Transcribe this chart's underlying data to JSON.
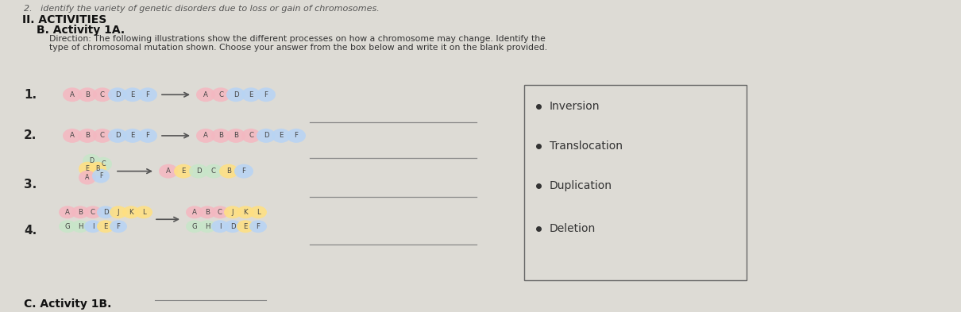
{
  "bg_color": "#dddbd5",
  "title_line1": "2.   identify the variety of genetic disorders due to loss or gain of chromosomes.",
  "section": "II. ACTIVITIES",
  "subsection": "B. Activity 1A.",
  "direction1": "Direction: The following illustrations show the different processes on how a chromosome may change. Identify the",
  "direction2": "type of chromosomal mutation shown. Choose your answer from the box below and write it on the blank provided.",
  "row_labels": [
    "1.",
    "2.",
    "3.",
    "4."
  ],
  "answer_box_items": [
    "Inversion",
    "Translocation",
    "Duplication",
    "Deletion"
  ],
  "rows": [
    {
      "left_labels": [
        "A",
        "B",
        "C",
        "D",
        "E",
        "F"
      ],
      "left_colors": [
        "#f4b8c1",
        "#f4b8c1",
        "#f4b8c1",
        "#b8d4f4",
        "#b8d4f4",
        "#b8d4f4"
      ],
      "right_labels": [
        "A",
        "C",
        "D",
        "E",
        "F"
      ],
      "right_colors": [
        "#f4b8c1",
        "#f4b8c1",
        "#b8d4f4",
        "#b8d4f4",
        "#b8d4f4"
      ],
      "type": "linear"
    },
    {
      "left_labels": [
        "A",
        "B",
        "C",
        "D",
        "E",
        "F"
      ],
      "left_colors": [
        "#f4b8c1",
        "#f4b8c1",
        "#f4b8c1",
        "#b8d4f4",
        "#b8d4f4",
        "#b8d4f4"
      ],
      "right_labels": [
        "A",
        "B",
        "B",
        "C",
        "D",
        "E",
        "F"
      ],
      "right_colors": [
        "#f4b8c1",
        "#f4b8c1",
        "#f4b8c1",
        "#f4b8c1",
        "#b8d4f4",
        "#b8d4f4",
        "#b8d4f4"
      ],
      "type": "linear"
    },
    {
      "circ_positions": [
        [
          10,
          -18,
          "D",
          "#c8e6c9"
        ],
        [
          25,
          -14,
          "C",
          "#c8e6c9"
        ],
        [
          5,
          -8,
          "E",
          "#ffe082"
        ],
        [
          18,
          -8,
          "B",
          "#ffe082"
        ],
        [
          5,
          3,
          "A",
          "#f4b8c1"
        ],
        [
          22,
          1,
          "F",
          "#b8d4f4"
        ]
      ],
      "right_labels": [
        "A",
        "E",
        "D",
        "C",
        "B",
        "F"
      ],
      "right_colors": [
        "#f4b8c1",
        "#ffe082",
        "#c8e6c9",
        "#c8e6c9",
        "#ffe082",
        "#b8d4f4"
      ],
      "type": "circular_to_linear"
    },
    {
      "top_left_labels": [
        "A",
        "B",
        "C",
        "D",
        "J",
        "K",
        "L"
      ],
      "top_left_colors": [
        "#f4b8c1",
        "#f4b8c1",
        "#f4b8c1",
        "#b8d4f4",
        "#ffe082",
        "#ffe082",
        "#ffe082"
      ],
      "bot_left_labels": [
        "G",
        "H",
        "I",
        "E",
        "F"
      ],
      "bot_left_colors": [
        "#c8e6c9",
        "#c8e6c9",
        "#b8d4f4",
        "#ffe082",
        "#b8d4f4"
      ],
      "top_right_labels": [
        "A",
        "B",
        "C",
        "J",
        "K",
        "L"
      ],
      "top_right_colors": [
        "#f4b8c1",
        "#f4b8c1",
        "#f4b8c1",
        "#ffe082",
        "#ffe082",
        "#ffe082"
      ],
      "bot_right_labels": [
        "G",
        "H",
        "I",
        "D",
        "E",
        "F"
      ],
      "bot_right_colors": [
        "#c8e6c9",
        "#c8e6c9",
        "#b8d4f4",
        "#b8d4f4",
        "#ffe082",
        "#b8d4f4"
      ],
      "type": "double_linear"
    }
  ],
  "bottom_text": "C. Activity 1B."
}
